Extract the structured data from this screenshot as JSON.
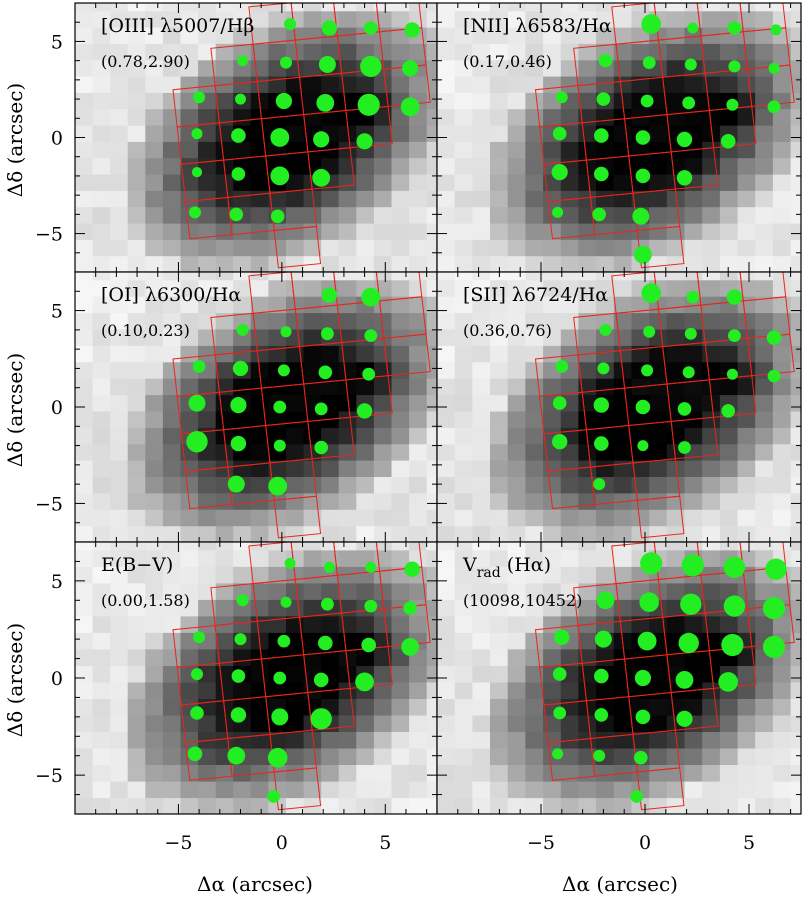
{
  "figure": {
    "xlabel": "Δα (arcsec)",
    "ylabel": "Δδ (arcsec)",
    "x_ticks": [
      -5,
      0,
      5
    ],
    "y_ticks": [
      -5,
      0,
      5
    ]
  },
  "chart_data": [
    {
      "type": "scatter",
      "title": "[OIII] λ5007/Hβ",
      "range": "(0.78,2.90)",
      "xlabel": "Δα (arcsec)",
      "ylabel": "Δδ (arcsec)",
      "xlim": [
        -10,
        7.5
      ],
      "ylim": [
        -7,
        7
      ],
      "point_size": "relative to range",
      "points": [
        [
          0.4,
          5.9,
          0.35
        ],
        [
          2.3,
          5.7,
          0.55
        ],
        [
          4.3,
          5.7,
          0.45
        ],
        [
          6.3,
          5.6,
          0.55
        ],
        [
          -1.9,
          4.0,
          0.3
        ],
        [
          0.2,
          3.9,
          0.35
        ],
        [
          2.2,
          3.8,
          0.65
        ],
        [
          4.3,
          3.7,
          0.9
        ],
        [
          6.2,
          3.6,
          0.6
        ],
        [
          -4.0,
          2.1,
          0.35
        ],
        [
          -2.0,
          2.0,
          0.3
        ],
        [
          0.1,
          1.9,
          0.6
        ],
        [
          2.1,
          1.8,
          0.7
        ],
        [
          4.2,
          1.7,
          0.95
        ],
        [
          6.2,
          1.6,
          0.75
        ],
        [
          -4.1,
          0.2,
          0.3
        ],
        [
          -2.1,
          0.1,
          0.5
        ],
        [
          -0.1,
          0.0,
          0.75
        ],
        [
          1.9,
          -0.1,
          0.6
        ],
        [
          4.0,
          -0.2,
          0.6
        ],
        [
          -4.1,
          -1.8,
          0.25
        ],
        [
          -2.1,
          -1.9,
          0.45
        ],
        [
          -0.1,
          -2.0,
          0.75
        ],
        [
          1.9,
          -2.1,
          0.7
        ],
        [
          -4.2,
          -3.9,
          0.35
        ],
        [
          -2.2,
          -4.0,
          0.45
        ],
        [
          -0.2,
          -4.1,
          0.45
        ]
      ]
    },
    {
      "type": "scatter",
      "title": "[NII] λ6583/Hα",
      "range": "(0.17,0.46)",
      "xlabel": "Δα (arcsec)",
      "ylabel": "Δδ (arcsec)",
      "xlim": [
        -10,
        7.5
      ],
      "ylim": [
        -7,
        7
      ],
      "point_size": "relative to range",
      "points": [
        [
          0.3,
          5.9,
          0.8
        ],
        [
          2.3,
          5.7,
          0.3
        ],
        [
          4.3,
          5.7,
          0.45
        ],
        [
          6.3,
          5.6,
          0.3
        ],
        [
          -1.9,
          4.0,
          0.45
        ],
        [
          0.2,
          3.9,
          0.4
        ],
        [
          2.2,
          3.8,
          0.35
        ],
        [
          4.3,
          3.7,
          0.35
        ],
        [
          6.2,
          3.6,
          0.3
        ],
        [
          -4.0,
          2.1,
          0.35
        ],
        [
          -2.0,
          2.0,
          0.45
        ],
        [
          0.1,
          1.9,
          0.4
        ],
        [
          2.1,
          1.8,
          0.4
        ],
        [
          4.2,
          1.7,
          0.35
        ],
        [
          6.2,
          1.6,
          0.4
        ],
        [
          -4.1,
          0.2,
          0.45
        ],
        [
          -2.1,
          0.1,
          0.5
        ],
        [
          -0.1,
          0.0,
          0.5
        ],
        [
          1.9,
          -0.1,
          0.55
        ],
        [
          4.0,
          -0.2,
          0.5
        ],
        [
          -4.1,
          -1.8,
          0.6
        ],
        [
          -2.1,
          -1.9,
          0.5
        ],
        [
          -0.1,
          -2.0,
          0.5
        ],
        [
          1.9,
          -2.1,
          0.55
        ],
        [
          -4.2,
          -3.9,
          0.3
        ],
        [
          -2.2,
          -4.0,
          0.45
        ],
        [
          -0.2,
          -4.1,
          0.65
        ],
        [
          -0.1,
          -6.1,
          0.7
        ]
      ]
    },
    {
      "type": "scatter",
      "title": "[OI] λ6300/Hα",
      "range": "(0.10,0.23)",
      "xlabel": "Δα (arcsec)",
      "ylabel": "Δδ (arcsec)",
      "xlim": [
        -10,
        7.5
      ],
      "ylim": [
        -7,
        7
      ],
      "point_size": "relative to range",
      "points": [
        [
          2.3,
          5.8,
          0.55
        ],
        [
          4.3,
          5.7,
          0.75
        ],
        [
          -1.9,
          4.0,
          0.35
        ],
        [
          0.2,
          3.9,
          0.3
        ],
        [
          2.2,
          3.8,
          0.4
        ],
        [
          4.3,
          3.7,
          0.4
        ],
        [
          -4.0,
          2.1,
          0.4
        ],
        [
          -2.0,
          2.0,
          0.55
        ],
        [
          0.1,
          1.9,
          0.35
        ],
        [
          2.1,
          1.8,
          0.45
        ],
        [
          4.2,
          1.7,
          0.4
        ],
        [
          -4.1,
          0.2,
          0.65
        ],
        [
          -2.1,
          0.1,
          0.6
        ],
        [
          -0.1,
          0.0,
          0.4
        ],
        [
          1.9,
          -0.1,
          0.4
        ],
        [
          4.0,
          -0.2,
          0.55
        ],
        [
          -4.1,
          -1.8,
          0.9
        ],
        [
          -2.1,
          -1.9,
          0.55
        ],
        [
          -0.1,
          -2.0,
          0.35
        ],
        [
          1.9,
          -2.1,
          0.45
        ],
        [
          -2.2,
          -4.0,
          0.65
        ],
        [
          -0.2,
          -4.1,
          0.75
        ]
      ]
    },
    {
      "type": "scatter",
      "title": "[SII] λ6724/Hα",
      "range": "(0.36,0.76)",
      "xlabel": "Δα (arcsec)",
      "ylabel": "Δδ (arcsec)",
      "xlim": [
        -10,
        7.5
      ],
      "ylim": [
        -7,
        7
      ],
      "point_size": "relative to range",
      "points": [
        [
          0.3,
          5.9,
          0.8
        ],
        [
          2.3,
          5.7,
          0.4
        ],
        [
          4.3,
          5.7,
          0.55
        ],
        [
          -1.9,
          4.0,
          0.35
        ],
        [
          0.2,
          3.9,
          0.35
        ],
        [
          2.2,
          3.8,
          0.35
        ],
        [
          4.3,
          3.7,
          0.4
        ],
        [
          6.2,
          3.6,
          0.5
        ],
        [
          -4.0,
          2.1,
          0.4
        ],
        [
          -2.0,
          2.0,
          0.35
        ],
        [
          0.1,
          1.9,
          0.35
        ],
        [
          2.1,
          1.8,
          0.35
        ],
        [
          4.2,
          1.7,
          0.3
        ],
        [
          6.2,
          1.6,
          0.4
        ],
        [
          -4.1,
          0.2,
          0.45
        ],
        [
          -2.1,
          0.1,
          0.55
        ],
        [
          -0.1,
          0.0,
          0.5
        ],
        [
          1.9,
          -0.1,
          0.45
        ],
        [
          4.0,
          -0.2,
          0.45
        ],
        [
          -4.1,
          -1.8,
          0.55
        ],
        [
          -2.1,
          -1.9,
          0.5
        ],
        [
          -0.1,
          -2.0,
          0.3
        ],
        [
          1.9,
          -2.1,
          0.4
        ],
        [
          -2.2,
          -4.0,
          0.35
        ]
      ]
    },
    {
      "type": "scatter",
      "title": "E(B−V)",
      "range": "(0.00,1.58)",
      "xlabel": "Δα (arcsec)",
      "ylabel": "Δδ (arcsec)",
      "xlim": [
        -10,
        7.5
      ],
      "ylim": [
        -7,
        7
      ],
      "point_size": "relative to range",
      "points": [
        [
          0.4,
          5.9,
          0.3
        ],
        [
          2.3,
          5.7,
          0.3
        ],
        [
          4.3,
          5.7,
          0.3
        ],
        [
          6.3,
          5.6,
          0.55
        ],
        [
          -1.9,
          4.0,
          0.35
        ],
        [
          0.2,
          3.9,
          0.3
        ],
        [
          2.2,
          3.8,
          0.4
        ],
        [
          4.3,
          3.7,
          0.4
        ],
        [
          6.2,
          3.6,
          0.45
        ],
        [
          -4.0,
          2.1,
          0.35
        ],
        [
          -2.0,
          2.0,
          0.35
        ],
        [
          0.1,
          1.9,
          0.4
        ],
        [
          2.1,
          1.8,
          0.5
        ],
        [
          4.2,
          1.7,
          0.5
        ],
        [
          6.2,
          1.6,
          0.7
        ],
        [
          -4.1,
          0.2,
          0.35
        ],
        [
          -2.1,
          0.1,
          0.45
        ],
        [
          -0.1,
          0.0,
          0.4
        ],
        [
          1.9,
          -0.1,
          0.5
        ],
        [
          4.0,
          -0.2,
          0.75
        ],
        [
          -4.1,
          -1.8,
          0.45
        ],
        [
          -2.1,
          -1.9,
          0.55
        ],
        [
          -0.1,
          -2.0,
          0.65
        ],
        [
          1.9,
          -2.1,
          0.9
        ],
        [
          -4.2,
          -3.9,
          0.5
        ],
        [
          -2.2,
          -4.0,
          0.7
        ],
        [
          -0.2,
          -4.1,
          0.8
        ],
        [
          -0.4,
          -6.1,
          0.4
        ]
      ]
    },
    {
      "type": "scatter",
      "title": "V_rad (Hα)",
      "range": "(10098,10452)",
      "xlabel": "Δα (arcsec)",
      "ylabel": "Δδ (arcsec)",
      "xlim": [
        -10,
        7.5
      ],
      "ylim": [
        -7,
        7
      ],
      "point_size": "relative to range",
      "points": [
        [
          0.3,
          5.9,
          0.95
        ],
        [
          2.3,
          5.8,
          0.95
        ],
        [
          4.3,
          5.7,
          0.9
        ],
        [
          6.3,
          5.6,
          0.9
        ],
        [
          -1.9,
          4.0,
          0.7
        ],
        [
          0.2,
          3.9,
          0.8
        ],
        [
          2.2,
          3.8,
          0.9
        ],
        [
          4.3,
          3.7,
          0.9
        ],
        [
          6.2,
          3.6,
          0.95
        ],
        [
          -4.0,
          2.1,
          0.55
        ],
        [
          -2.0,
          2.0,
          0.65
        ],
        [
          0.1,
          1.9,
          0.75
        ],
        [
          2.1,
          1.8,
          0.85
        ],
        [
          4.2,
          1.7,
          0.95
        ],
        [
          6.2,
          1.6,
          0.95
        ],
        [
          -4.1,
          0.2,
          0.45
        ],
        [
          -2.1,
          0.1,
          0.5
        ],
        [
          -0.1,
          0.0,
          0.6
        ],
        [
          1.9,
          -0.1,
          0.7
        ],
        [
          4.0,
          -0.2,
          0.8
        ],
        [
          -4.1,
          -1.8,
          0.4
        ],
        [
          -2.1,
          -1.9,
          0.45
        ],
        [
          -0.1,
          -2.0,
          0.5
        ],
        [
          1.9,
          -2.1,
          0.6
        ],
        [
          -4.2,
          -3.9,
          0.3
        ],
        [
          -2.2,
          -4.0,
          0.35
        ],
        [
          -0.2,
          -4.1,
          0.45
        ],
        [
          -0.4,
          -6.1,
          0.4
        ]
      ]
    }
  ]
}
